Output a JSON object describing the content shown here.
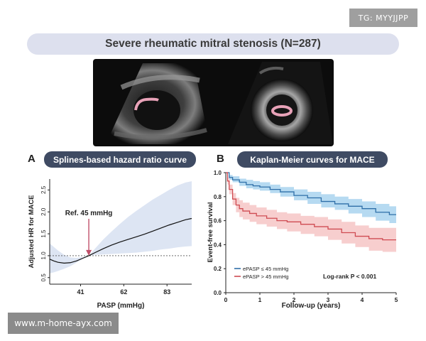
{
  "badge": {
    "text": "TG: MYYJJPP"
  },
  "title": "Severe rheumatic mitral stenosis (N=287)",
  "watermark": "www.m-home-ayx.com",
  "colors": {
    "pill_bg": "#3f4b63",
    "title_bg": "#dde0ee",
    "spline_band": "#dde5f3",
    "ref_line": "#c0506a",
    "km_low_line": "#2f6fa8",
    "km_low_band": "#a9d3ee",
    "km_high_line": "#cf4b52",
    "km_high_band": "#f6c6c6"
  },
  "panel_a": {
    "letter": "A",
    "title": "Splines-based hazard ratio curve"
  },
  "panel_b": {
    "letter": "B",
    "title": "Kaplan-Meier curves for MACE"
  },
  "chart_data": [
    {
      "id": "A",
      "type": "line",
      "xlabel": "PASP (mmHg)",
      "ylabel": "Adjusted HR for MACE",
      "xlim": [
        26,
        95
      ],
      "ylim": [
        0.35,
        2.75
      ],
      "xticks": [
        41,
        62,
        83
      ],
      "yticks": [
        0.5,
        1.0,
        1.5,
        2.0,
        2.5
      ],
      "ytick_labels": [
        "0.5",
        "1.0",
        "1.5",
        "2.0",
        "2.5"
      ],
      "reference_line_y": 1.0,
      "annotation": {
        "text": "Ref. 45 mmHg",
        "x": 45
      },
      "series": [
        {
          "x": [
            26,
            28,
            30,
            33,
            36,
            39,
            42,
            45,
            48,
            52,
            56,
            60,
            64,
            68,
            72,
            76,
            80,
            84,
            88,
            92,
            95
          ],
          "y": [
            0.92,
            0.88,
            0.85,
            0.83,
            0.84,
            0.88,
            0.94,
            1.0,
            1.07,
            1.16,
            1.24,
            1.31,
            1.37,
            1.43,
            1.49,
            1.56,
            1.63,
            1.7,
            1.76,
            1.82,
            1.85
          ],
          "lower": [
            0.6,
            0.62,
            0.65,
            0.7,
            0.76,
            0.84,
            0.93,
            1.0,
            1.02,
            1.03,
            1.04,
            1.05,
            1.06,
            1.07,
            1.09,
            1.11,
            1.14,
            1.16,
            1.19,
            1.21,
            1.22
          ],
          "upper": [
            1.28,
            1.2,
            1.12,
            1.02,
            0.96,
            0.95,
            0.97,
            1.0,
            1.16,
            1.37,
            1.55,
            1.72,
            1.88,
            2.02,
            2.15,
            2.28,
            2.39,
            2.5,
            2.6,
            2.67,
            2.7
          ]
        }
      ]
    },
    {
      "id": "B",
      "type": "line",
      "xlabel": "Follow-up (years)",
      "ylabel": "Event-free survival",
      "xlim": [
        0,
        5
      ],
      "ylim": [
        0,
        1.0
      ],
      "xticks": [
        0,
        1,
        2,
        3,
        4,
        5
      ],
      "yticks": [
        0,
        0.2,
        0.4,
        0.6,
        0.8,
        1.0
      ],
      "ytick_labels": [
        "0.0",
        "0.2",
        "0.4",
        "0.6",
        "0.8",
        "1.0"
      ],
      "annotation": {
        "text": "Log-rank P < 0.001"
      },
      "series": [
        {
          "name": "ePASP ≤ 45 mmHg",
          "x": [
            0,
            0.1,
            0.2,
            0.4,
            0.6,
            0.8,
            1.0,
            1.3,
            1.6,
            2.0,
            2.4,
            2.8,
            3.2,
            3.6,
            4.0,
            4.4,
            4.8,
            5.0
          ],
          "y": [
            1.0,
            0.96,
            0.94,
            0.92,
            0.9,
            0.89,
            0.88,
            0.86,
            0.84,
            0.81,
            0.79,
            0.76,
            0.74,
            0.72,
            0.7,
            0.67,
            0.65,
            0.65
          ],
          "lower": [
            1.0,
            0.94,
            0.92,
            0.89,
            0.87,
            0.86,
            0.85,
            0.83,
            0.8,
            0.77,
            0.74,
            0.71,
            0.69,
            0.66,
            0.63,
            0.6,
            0.58,
            0.57
          ],
          "upper": [
            1.0,
            0.98,
            0.97,
            0.95,
            0.94,
            0.93,
            0.92,
            0.9,
            0.88,
            0.86,
            0.84,
            0.82,
            0.8,
            0.78,
            0.76,
            0.74,
            0.72,
            0.72
          ]
        },
        {
          "name": "ePASP > 45 mmHg",
          "x": [
            0,
            0.05,
            0.1,
            0.2,
            0.3,
            0.4,
            0.5,
            0.7,
            0.9,
            1.2,
            1.5,
            1.8,
            2.2,
            2.6,
            3.0,
            3.4,
            3.8,
            4.2,
            4.6,
            5.0
          ],
          "y": [
            1.0,
            0.93,
            0.86,
            0.78,
            0.73,
            0.7,
            0.68,
            0.66,
            0.64,
            0.62,
            0.6,
            0.59,
            0.57,
            0.55,
            0.53,
            0.5,
            0.47,
            0.45,
            0.44,
            0.44
          ],
          "lower": [
            1.0,
            0.9,
            0.82,
            0.73,
            0.67,
            0.63,
            0.61,
            0.59,
            0.57,
            0.55,
            0.53,
            0.51,
            0.49,
            0.47,
            0.44,
            0.41,
            0.38,
            0.35,
            0.34,
            0.33
          ],
          "upper": [
            1.0,
            0.96,
            0.9,
            0.83,
            0.79,
            0.77,
            0.75,
            0.73,
            0.71,
            0.69,
            0.67,
            0.66,
            0.64,
            0.63,
            0.61,
            0.59,
            0.56,
            0.54,
            0.54,
            0.53
          ]
        }
      ]
    }
  ]
}
